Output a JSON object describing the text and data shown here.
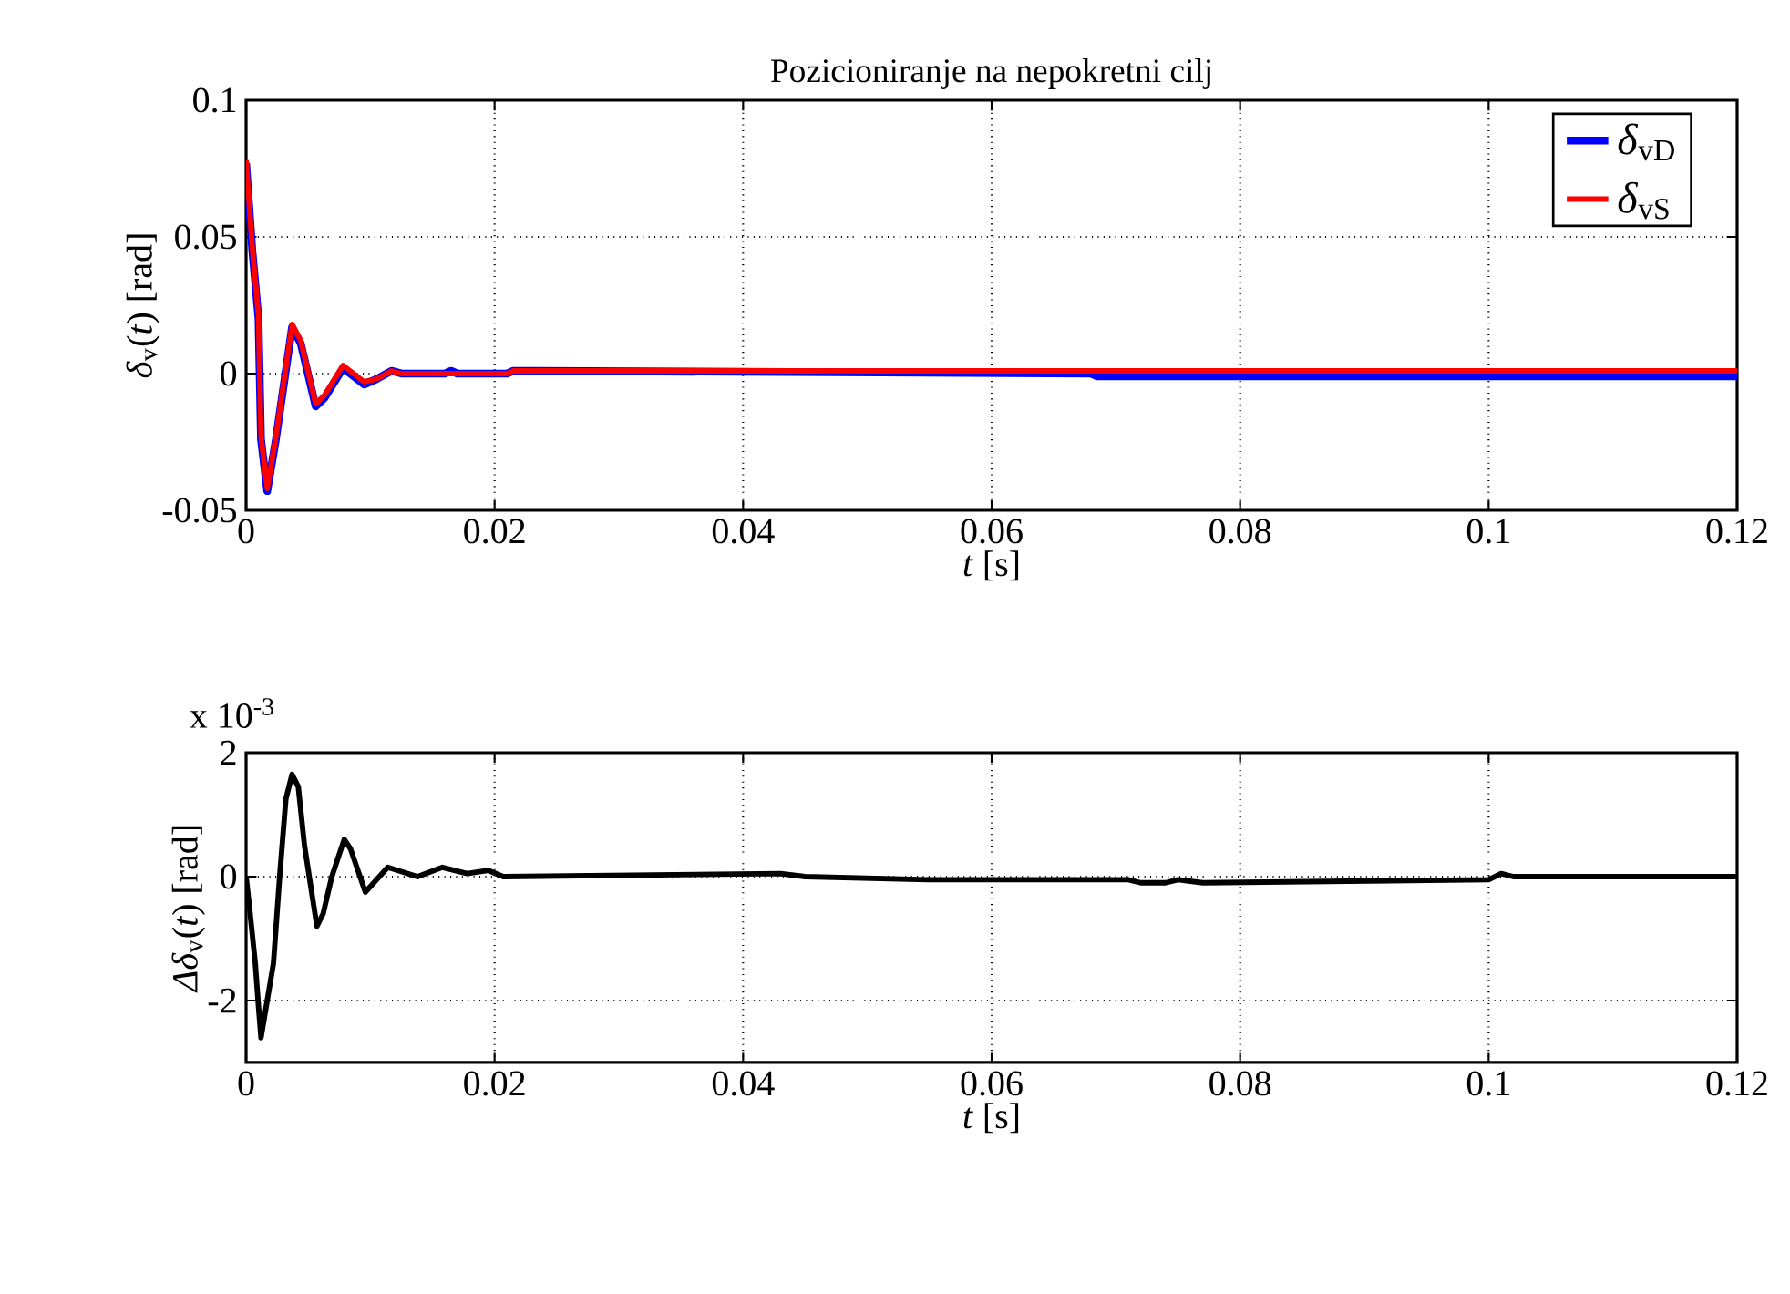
{
  "chart_data": [
    {
      "type": "line",
      "title": "Pozicioniranje na nepokretni cilj",
      "xlabel": "*t* [s]",
      "ylabel": "*δ*$_{v}$(*t*) [rad]",
      "x": [
        0,
        0.00024,
        0.0005,
        0.001,
        0.0012,
        0.0017,
        0.0024,
        0.0031,
        0.0037,
        0.0044,
        0.0056,
        0.0063,
        0.0078,
        0.0095,
        0.0105,
        0.0117,
        0.0125,
        0.016,
        0.0165,
        0.017,
        0.021,
        0.0215,
        0.023,
        0.068,
        0.0685,
        0.12
      ],
      "series": [
        {
          "name": "*δ*$_{vD}$",
          "color": "#0000ff",
          "values": [
            0.077,
            0.062,
            0.045,
            0.02,
            -0.024,
            -0.043,
            -0.024,
            -0.002,
            0.017,
            0.011,
            -0.012,
            -0.009,
            0.002,
            -0.004,
            -0.002,
            0.001,
            0,
            0,
            0.001,
            0,
            0,
            0.001,
            0.001,
            0,
            -0.001,
            -0.001
          ]
        },
        {
          "name": "*δ*$_{vS}$",
          "color": "#ff0000",
          "values": [
            0.078,
            0.063,
            0.046,
            0.021,
            -0.023,
            -0.042,
            -0.023,
            -0.001,
            0.018,
            0.012,
            -0.011,
            -0.008,
            0.003,
            -0.003,
            -0.002,
            0.001,
            0,
            0,
            0,
            0,
            0,
            0.001,
            0.001,
            0.001,
            0.001,
            0.001
          ]
        }
      ],
      "xlim": [
        0,
        0.12
      ],
      "xticks": [
        0,
        0.02,
        0.04,
        0.06,
        0.08,
        0.1,
        0.12
      ],
      "ylim": [
        -0.05,
        0.1
      ],
      "yticks": [
        -0.05,
        0,
        0.05,
        0.1
      ],
      "grid": true,
      "legend": "top right",
      "marker": "none",
      "line_style": "solid"
    },
    {
      "type": "line",
      "xlabel": "*t* [s]",
      "ylabel": "*Δδ*$_{v}$(*t*) [rad]",
      "annotations": [
        "x 10$^{-3}$"
      ],
      "x": [
        0,
        0.00025,
        0.00074,
        0.001,
        0.0012,
        0.0022,
        0.0027,
        0.0032,
        0.0037,
        0.0042,
        0.0047,
        0.0057,
        0.0062,
        0.0069,
        0.0079,
        0.0084,
        0.0096,
        0.0114,
        0.0138,
        0.0158,
        0.0178,
        0.0195,
        0.0207,
        0.043,
        0.045,
        0.055,
        0.071,
        0.072,
        0.074,
        0.075,
        0.077,
        0.1,
        0.101,
        0.102,
        0.106,
        0.107,
        0.12
      ],
      "series": [
        {
          "color": "#000000",
          "values": [
            0,
            -0.45,
            -1.4,
            -2.1,
            -2.6,
            -1.4,
            0,
            1.25,
            1.65,
            1.45,
            0.5,
            -0.8,
            -0.6,
            0,
            0.6,
            0.45,
            -0.25,
            0.15,
            0,
            0.15,
            0.05,
            0.1,
            0,
            0.05,
            0,
            -0.05,
            -0.05,
            -0.1,
            -0.1,
            -0.05,
            -0.1,
            -0.05,
            0.05,
            0,
            0,
            0,
            0
          ]
        }
      ],
      "xlim": [
        0,
        0.12
      ],
      "xticks": [
        0,
        0.02,
        0.04,
        0.06,
        0.08,
        0.1,
        0.12
      ],
      "ylim": [
        -3,
        2
      ],
      "yticks": [
        -2,
        0,
        2
      ],
      "grid": true,
      "legend": false,
      "marker": "none",
      "line_style": "solid"
    }
  ]
}
